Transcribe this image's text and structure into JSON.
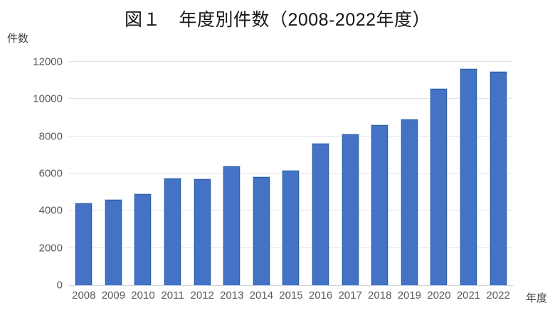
{
  "chart_data": {
    "type": "bar",
    "title": "図１　年度別件数（2008-2022年度）",
    "xlabel": "年度",
    "ylabel": "件数",
    "categories": [
      "2008",
      "2009",
      "2010",
      "2011",
      "2012",
      "2013",
      "2014",
      "2015",
      "2016",
      "2017",
      "2018",
      "2019",
      "2020",
      "2021",
      "2022"
    ],
    "values": [
      4400,
      4600,
      4900,
      5750,
      5700,
      6400,
      5800,
      6150,
      7600,
      8100,
      8600,
      8900,
      10550,
      11600,
      11450
    ],
    "ylim": [
      0,
      12000
    ],
    "yticks": [
      0,
      2000,
      4000,
      6000,
      8000,
      10000,
      12000
    ],
    "grid": true,
    "legend": "none",
    "bar_color": "#4472C4",
    "bar_border_color": "#2E5FA3",
    "gridline_color": "#E4E4E4",
    "axis_line_color": "#D2D2D2",
    "tick_text_color": "#595959"
  }
}
